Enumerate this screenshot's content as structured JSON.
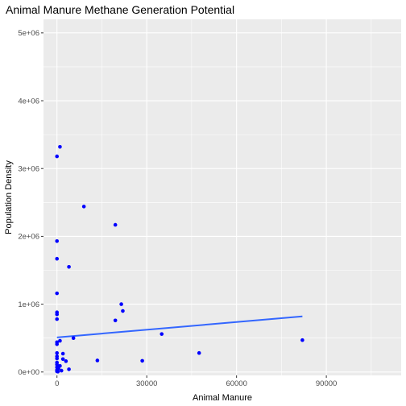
{
  "chart_data": {
    "type": "scatter",
    "title": "Animal Manure Methane Generation Potential",
    "xlabel": "Animal Manure",
    "ylabel": "Population Density",
    "xlim": [
      -4500,
      115000
    ],
    "ylim": [
      -50000,
      5200000
    ],
    "x_ticks": [
      {
        "value": 0,
        "label": "0"
      },
      {
        "value": 30000,
        "label": "30000"
      },
      {
        "value": 60000,
        "label": "60000"
      },
      {
        "value": 90000,
        "label": "90000"
      }
    ],
    "y_ticks": [
      {
        "value": 0,
        "label": "0e+00"
      },
      {
        "value": 1000000,
        "label": "1e+06"
      },
      {
        "value": 2000000,
        "label": "2e+06"
      },
      {
        "value": 3000000,
        "label": "3e+06"
      },
      {
        "value": 4000000,
        "label": "4e+06"
      },
      {
        "value": 5000000,
        "label": "5e+06"
      }
    ],
    "grid": true,
    "point_color": "#0000ff",
    "line_color": "#3366ff",
    "panel_background": "#ebebeb",
    "points": [
      {
        "x": 1000,
        "y": 3320000
      },
      {
        "x": 0,
        "y": 3180000
      },
      {
        "x": 9000,
        "y": 2440000
      },
      {
        "x": 19500,
        "y": 2170000
      },
      {
        "x": 0,
        "y": 1930000
      },
      {
        "x": 0,
        "y": 1670000
      },
      {
        "x": 4000,
        "y": 1550000
      },
      {
        "x": 0,
        "y": 1160000
      },
      {
        "x": 21500,
        "y": 1000000
      },
      {
        "x": 22000,
        "y": 900000
      },
      {
        "x": 0,
        "y": 880000
      },
      {
        "x": 0,
        "y": 850000
      },
      {
        "x": 0,
        "y": 780000
      },
      {
        "x": 19500,
        "y": 760000
      },
      {
        "x": 35000,
        "y": 560000
      },
      {
        "x": 5500,
        "y": 500000
      },
      {
        "x": 82000,
        "y": 470000
      },
      {
        "x": 1000,
        "y": 460000
      },
      {
        "x": 0,
        "y": 440000
      },
      {
        "x": 0,
        "y": 410000
      },
      {
        "x": 47500,
        "y": 280000
      },
      {
        "x": 0,
        "y": 280000
      },
      {
        "x": 2000,
        "y": 270000
      },
      {
        "x": 0,
        "y": 230000
      },
      {
        "x": 0,
        "y": 200000
      },
      {
        "x": 2000,
        "y": 190000
      },
      {
        "x": 13500,
        "y": 170000
      },
      {
        "x": 28500,
        "y": 165000
      },
      {
        "x": 3000,
        "y": 160000
      },
      {
        "x": 0,
        "y": 140000
      },
      {
        "x": 0,
        "y": 110000
      },
      {
        "x": 1000,
        "y": 90000
      },
      {
        "x": 0,
        "y": 70000
      },
      {
        "x": 500,
        "y": 50000
      },
      {
        "x": 4000,
        "y": 40000
      },
      {
        "x": 0,
        "y": 30000
      },
      {
        "x": 1500,
        "y": 20000
      },
      {
        "x": 0,
        "y": 10000
      },
      {
        "x": 300,
        "y": 5000
      }
    ],
    "fit_line": {
      "x": [
        0,
        82000
      ],
      "y": [
        510000,
        820000
      ]
    }
  }
}
